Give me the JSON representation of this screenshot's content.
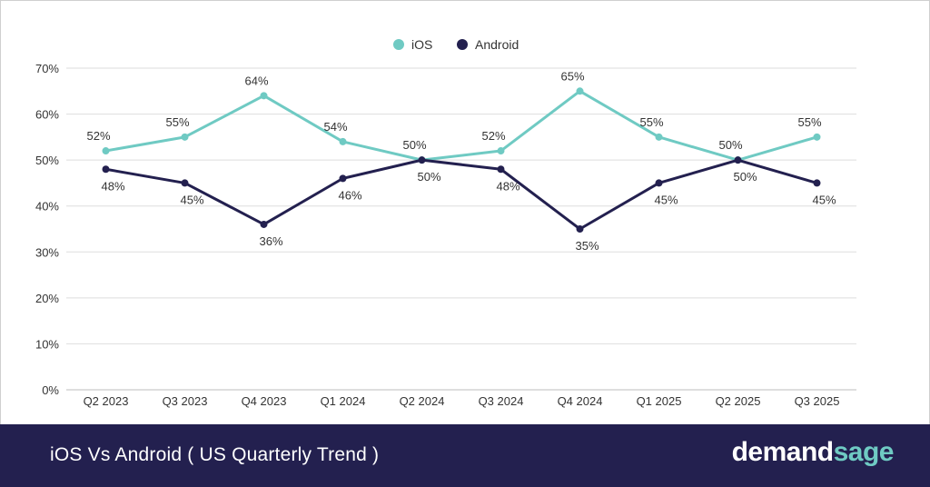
{
  "footer": {
    "title": "iOS Vs Android ( US Quarterly Trend )",
    "brand_part1": "demand",
    "brand_part2": "sage"
  },
  "chart_data": {
    "type": "line",
    "categories": [
      "Q2 2023",
      "Q3 2023",
      "Q4 2023",
      "Q1 2024",
      "Q2 2024",
      "Q3 2024",
      "Q4 2024",
      "Q1 2025",
      "Q2 2025",
      "Q3 2025"
    ],
    "series": [
      {
        "name": "iOS",
        "color": "#6fcac3",
        "values": [
          52,
          55,
          64,
          54,
          50,
          52,
          65,
          55,
          50,
          55
        ],
        "labels": [
          "52%",
          "55%",
          "64%",
          "54%",
          "50%",
          "52%",
          "65%",
          "55%",
          "50%",
          "55%"
        ]
      },
      {
        "name": "Android",
        "color": "#23204f",
        "values": [
          48,
          45,
          36,
          46,
          50,
          48,
          35,
          45,
          50,
          45
        ],
        "labels": [
          "48%",
          "45%",
          "36%",
          "46%",
          "50%",
          "48%",
          "35%",
          "45%",
          "50%",
          "45%"
        ]
      }
    ],
    "ylim": [
      0,
      70
    ],
    "yticks": [
      "0%",
      "10%",
      "20%",
      "30%",
      "40%",
      "50%",
      "60%",
      "70%"
    ],
    "grid": true,
    "legend": "top-center"
  }
}
